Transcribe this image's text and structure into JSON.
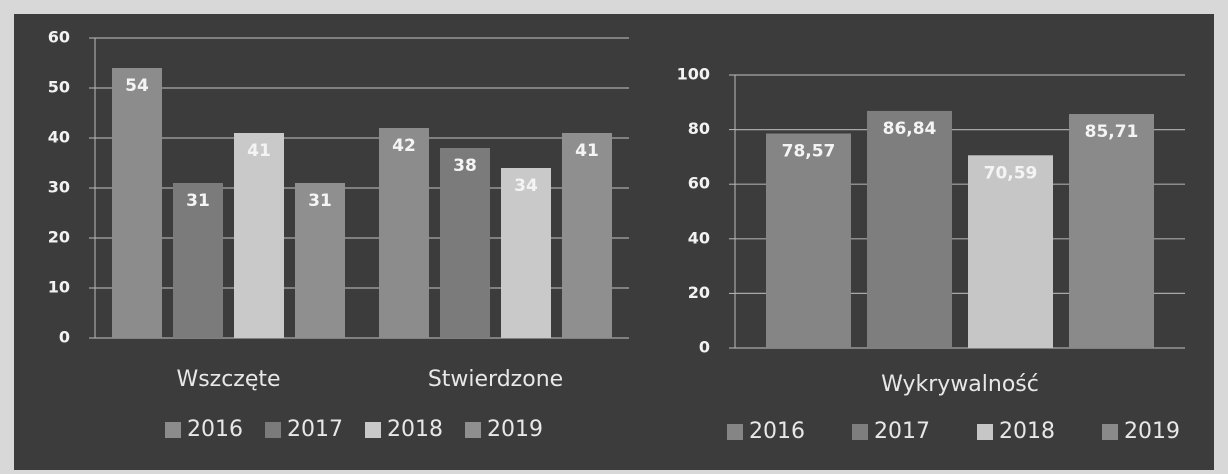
{
  "chart_data": [
    {
      "type": "bar",
      "categories": [
        "Wszczęte",
        "Stwierdzone"
      ],
      "series": [
        {
          "name": "2016",
          "color": "#8c8c8c",
          "values": [
            54,
            42
          ]
        },
        {
          "name": "2017",
          "color": "#7b7b7b",
          "values": [
            31,
            38
          ]
        },
        {
          "name": "2018",
          "color": "#c9c9c9",
          "values": [
            41,
            34
          ]
        },
        {
          "name": "2019",
          "color": "#8f8f8f",
          "values": [
            31,
            41
          ]
        }
      ],
      "ylim": [
        0,
        60
      ],
      "yticks": [
        0,
        10,
        20,
        30,
        40,
        50,
        60
      ],
      "grid": true,
      "legend": "bottom"
    },
    {
      "type": "bar",
      "categories": [
        "Wykrywalność"
      ],
      "series": [
        {
          "name": "2016",
          "color": "#858585",
          "values": [
            78.57
          ],
          "value_labels": [
            "78,57"
          ]
        },
        {
          "name": "2017",
          "color": "#7e7e7e",
          "values": [
            86.84
          ],
          "value_labels": [
            "86,84"
          ]
        },
        {
          "name": "2018",
          "color": "#c6c6c6",
          "values": [
            70.59
          ],
          "value_labels": [
            "70,59"
          ]
        },
        {
          "name": "2019",
          "color": "#8a8a8a",
          "values": [
            85.71
          ],
          "value_labels": [
            "85,71"
          ]
        }
      ],
      "ylim": [
        0,
        100
      ],
      "yticks": [
        0,
        20,
        40,
        60,
        80,
        100
      ],
      "grid": true,
      "legend": "bottom"
    }
  ]
}
